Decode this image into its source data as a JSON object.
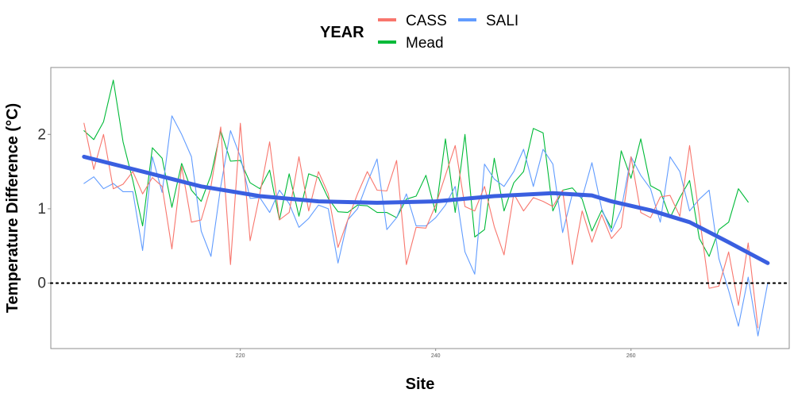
{
  "chart_data": {
    "type": "line",
    "title": "",
    "xlabel": "Site",
    "ylabel": "Temperature Difference (°C)",
    "xlim": [
      200.6,
      276.2
    ],
    "ylim": [
      -0.88,
      2.9
    ],
    "x_ticks": [
      "220",
      "240",
      "260"
    ],
    "y_ticks": [
      "0",
      "1",
      "2"
    ],
    "reference_line": {
      "y": 0,
      "style": "dotted",
      "color": "#000000"
    },
    "legend": {
      "title": "YEAR",
      "position": "top",
      "entries": [
        "CASS",
        "SALI",
        "Mead"
      ]
    },
    "grid": false,
    "series": [
      {
        "name": "CASS",
        "color": "#F8766D",
        "x": [
          204,
          205,
          206,
          207,
          208,
          209,
          210,
          211,
          212,
          213,
          214,
          215,
          216,
          217,
          218,
          219,
          220,
          221,
          222,
          223,
          224,
          225,
          226,
          227,
          228,
          229,
          230,
          231,
          232,
          233,
          234,
          235,
          236,
          237,
          238,
          239,
          240,
          241,
          242,
          243,
          244,
          245,
          246,
          247,
          248,
          249,
          250,
          251,
          252,
          253,
          254,
          255,
          256,
          257,
          258,
          259,
          260,
          261,
          262,
          263,
          264,
          265,
          266,
          267,
          268,
          269,
          270,
          271,
          272,
          273,
          274
        ],
        "values": [
          2.15,
          1.53,
          2.0,
          1.27,
          1.33,
          1.5,
          1.2,
          1.42,
          1.3,
          0.46,
          1.57,
          0.82,
          0.85,
          1.3,
          2.1,
          0.25,
          2.15,
          0.57,
          1.2,
          1.9,
          0.85,
          0.95,
          1.7,
          0.97,
          1.5,
          1.2,
          0.48,
          0.85,
          1.2,
          1.5,
          1.25,
          1.24,
          1.65,
          0.25,
          0.75,
          0.74,
          1.05,
          1.45,
          1.85,
          1.03,
          0.97,
          1.3,
          0.76,
          0.38,
          1.2,
          0.97,
          1.15,
          1.1,
          1.03,
          1.25,
          0.25,
          0.97,
          0.55,
          0.92,
          0.6,
          0.75,
          1.7,
          0.95,
          0.88,
          1.16,
          1.18,
          0.9,
          1.85,
          0.9,
          -0.07,
          -0.04,
          0.42,
          -0.3,
          0.54,
          -0.6,
          null
        ]
      },
      {
        "name": "SALI",
        "color": "#619CFF",
        "x": [
          204,
          205,
          206,
          207,
          208,
          209,
          210,
          211,
          212,
          213,
          214,
          215,
          216,
          217,
          218,
          219,
          220,
          221,
          222,
          223,
          224,
          225,
          226,
          227,
          228,
          229,
          230,
          231,
          232,
          233,
          234,
          235,
          236,
          237,
          238,
          239,
          240,
          241,
          242,
          243,
          244,
          245,
          246,
          247,
          248,
          249,
          250,
          251,
          252,
          253,
          254,
          255,
          256,
          257,
          258,
          259,
          260,
          261,
          262,
          263,
          264,
          265,
          266,
          267,
          268,
          269,
          270,
          271,
          272,
          273,
          274
        ],
        "values": [
          1.34,
          1.43,
          1.27,
          1.34,
          1.23,
          1.23,
          0.44,
          1.7,
          1.22,
          2.25,
          2.0,
          1.7,
          0.7,
          0.36,
          1.3,
          2.05,
          1.7,
          1.14,
          1.15,
          0.95,
          1.25,
          1.07,
          0.75,
          0.87,
          1.05,
          1.0,
          0.27,
          0.85,
          1.0,
          1.35,
          1.67,
          0.72,
          0.88,
          1.2,
          0.77,
          0.77,
          0.88,
          1.05,
          1.3,
          0.42,
          0.12,
          1.6,
          1.4,
          1.3,
          1.5,
          1.8,
          1.3,
          1.8,
          1.6,
          0.68,
          1.2,
          1.15,
          1.62,
          1.0,
          0.69,
          0.99,
          1.7,
          1.45,
          1.27,
          0.82,
          1.7,
          1.5,
          0.97,
          1.13,
          1.25,
          0.33,
          -0.1,
          -0.58,
          0.08,
          -0.71,
          0.0
        ]
      },
      {
        "name": "Mead",
        "color": "#00BA38",
        "x": [
          204,
          205,
          206,
          207,
          208,
          209,
          210,
          211,
          212,
          213,
          214,
          215,
          216,
          217,
          218,
          219,
          220,
          221,
          222,
          223,
          224,
          225,
          226,
          227,
          228,
          229,
          230,
          231,
          232,
          233,
          234,
          235,
          236,
          237,
          238,
          239,
          240,
          241,
          242,
          243,
          244,
          245,
          246,
          247,
          248,
          249,
          250,
          251,
          252,
          253,
          254,
          255,
          256,
          257,
          258,
          259,
          260,
          261,
          262,
          263,
          264,
          265,
          266,
          267,
          268,
          269,
          270,
          271,
          272,
          273,
          274
        ],
        "values": [
          2.05,
          1.93,
          2.17,
          2.73,
          1.9,
          1.38,
          0.77,
          1.82,
          1.68,
          1.02,
          1.61,
          1.25,
          1.1,
          1.45,
          2.05,
          1.64,
          1.65,
          1.35,
          1.27,
          1.52,
          0.85,
          1.47,
          0.9,
          1.47,
          1.42,
          1.14,
          0.96,
          0.95,
          1.05,
          1.04,
          0.95,
          0.95,
          0.88,
          1.13,
          1.17,
          1.45,
          0.95,
          1.94,
          0.95,
          2.0,
          0.62,
          0.72,
          1.68,
          0.97,
          1.35,
          1.5,
          2.08,
          2.02,
          0.97,
          1.25,
          1.28,
          1.13,
          0.7,
          0.98,
          0.74,
          1.78,
          1.41,
          1.94,
          1.31,
          1.24,
          0.88,
          1.15,
          1.38,
          0.6,
          0.36,
          0.72,
          0.82,
          1.27,
          1.09,
          null,
          null
        ]
      },
      {
        "name": "",
        "type": "smooth",
        "color": "#3A5FE0",
        "x": [
          204,
          210,
          216,
          222,
          228,
          234,
          240,
          246,
          252,
          256,
          258,
          262,
          266,
          270,
          274
        ],
        "values": [
          1.7,
          1.5,
          1.3,
          1.17,
          1.1,
          1.08,
          1.1,
          1.17,
          1.21,
          1.18,
          1.1,
          0.98,
          0.82,
          0.55,
          0.27
        ]
      }
    ]
  }
}
